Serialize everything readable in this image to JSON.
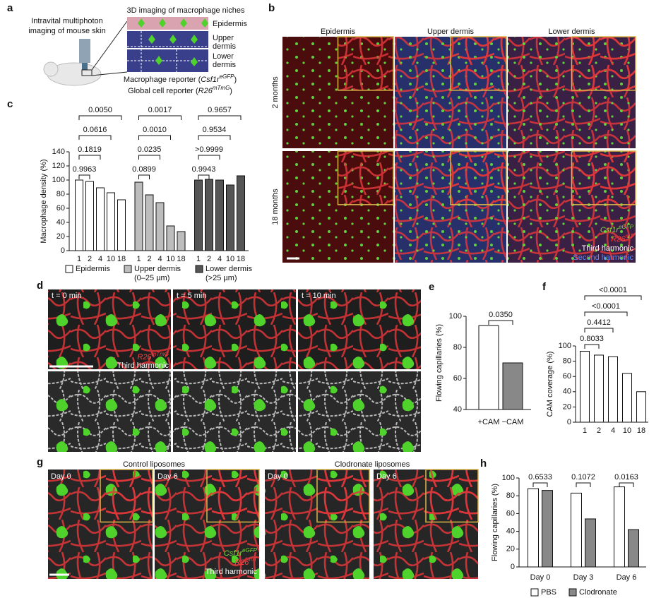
{
  "panel_a": {
    "label": "a",
    "title": "3D imaging of macrophage niches",
    "method": [
      "Intravital multiphoton",
      "imaging of mouse skin"
    ],
    "layers": [
      [
        "Epidermis"
      ],
      [
        "Upper",
        "dermis"
      ],
      [
        "Lower",
        "dermis"
      ]
    ],
    "reporters": [
      [
        "Macrophage reporter (",
        "Csf1r",
        "eGFP",
        ")"
      ],
      [
        "Global cell reporter (",
        "R26",
        "mTmG",
        ")"
      ]
    ]
  },
  "panel_b": {
    "label": "b",
    "columns": [
      "Epidermis",
      "Upper dermis",
      "Lower dermis"
    ],
    "rows": [
      "2 months",
      "18 months"
    ],
    "legend": [
      [
        "Csf1r",
        "eGFP"
      ],
      [
        "R26",
        "mT"
      ],
      [
        "Third harmonic"
      ],
      [
        "Second harmonic"
      ]
    ]
  },
  "panel_d": {
    "label": "d",
    "times": [
      "t = 0 min",
      "t = 5 min",
      "t = 10 min"
    ],
    "legend": [
      [
        "R26",
        "mTmG"
      ],
      [
        "Third harmonic"
      ]
    ]
  },
  "panel_g": {
    "label": "g",
    "conditions": [
      "Control liposomes",
      "Clodronate liposomes"
    ],
    "days": [
      "Day 0",
      "Day 6",
      "Day 0",
      "Day 6"
    ],
    "legend": [
      [
        "Csf1r",
        "eGFP"
      ],
      [
        "R26",
        "mT"
      ],
      [
        "Third harmonic"
      ]
    ]
  },
  "chart_data": [
    {
      "type": "bar",
      "label": "c",
      "group_by": "series",
      "ylabel": "Macrophage density (%)",
      "categories": [
        "1",
        "2",
        "4",
        "10",
        "18"
      ],
      "ylim": [
        0,
        140
      ],
      "yticks": [
        0,
        20,
        40,
        60,
        80,
        100,
        120,
        140
      ],
      "series": [
        {
          "name": "Epidermis",
          "color": "#ffffff",
          "values": [
            100,
            98,
            89,
            82,
            72
          ],
          "p_values": [
            "0.9963",
            "0.1819",
            "0.0616",
            "0.0050"
          ]
        },
        {
          "name": "Upper dermis",
          "note": "(0–25 µm)",
          "color": "#bdbdbd",
          "values": [
            97,
            79,
            68,
            35,
            27
          ],
          "p_values": [
            "0.0899",
            "0.0235",
            "0.0010",
            "0.0017"
          ]
        },
        {
          "name": "Lower dermis",
          "note": "(>25 µm)",
          "color": "#555555",
          "values": [
            100,
            101,
            100,
            93,
            106
          ],
          "p_values": [
            "0.9943",
            ">0.9999",
            "0.9534",
            "0.9657"
          ]
        }
      ]
    },
    {
      "type": "bar",
      "label": "e",
      "ylabel": "Flowing capillaries (%)",
      "categories": [
        "+CAM",
        "−CAM"
      ],
      "values": [
        94,
        70
      ],
      "colors": [
        "#ffffff",
        "#888888"
      ],
      "ylim": [
        40,
        100
      ],
      "yticks": [
        40,
        60,
        80,
        100
      ],
      "p_values": [
        "0.0350"
      ]
    },
    {
      "type": "bar",
      "label": "f",
      "ylabel": "CAM coverage (%)",
      "categories": [
        "1",
        "2",
        "4",
        "10",
        "18"
      ],
      "values": [
        93,
        88,
        86,
        64,
        40
      ],
      "colors": [
        "#ffffff",
        "#ffffff",
        "#ffffff",
        "#ffffff",
        "#ffffff"
      ],
      "ylim": [
        0,
        100
      ],
      "yticks": [
        0,
        20,
        40,
        60,
        80,
        100
      ],
      "p_values": [
        "0.8033",
        "0.4412",
        "<0.0001",
        "<0.0001"
      ]
    },
    {
      "type": "bar",
      "label": "h",
      "group_by": "category",
      "ylabel": "Flowing capillaries (%)",
      "categories": [
        "Day 0",
        "Day 3",
        "Day 6"
      ],
      "ylim": [
        0,
        100
      ],
      "yticks": [
        0,
        20,
        40,
        60,
        80,
        100
      ],
      "p_values": [
        "0.6533",
        "0.1072",
        "0.0163"
      ],
      "series": [
        {
          "name": "PBS",
          "color": "#ffffff",
          "values": [
            88,
            83,
            90
          ]
        },
        {
          "name": "Clodronate",
          "color": "#888888",
          "values": [
            86,
            54,
            42
          ]
        }
      ]
    }
  ]
}
